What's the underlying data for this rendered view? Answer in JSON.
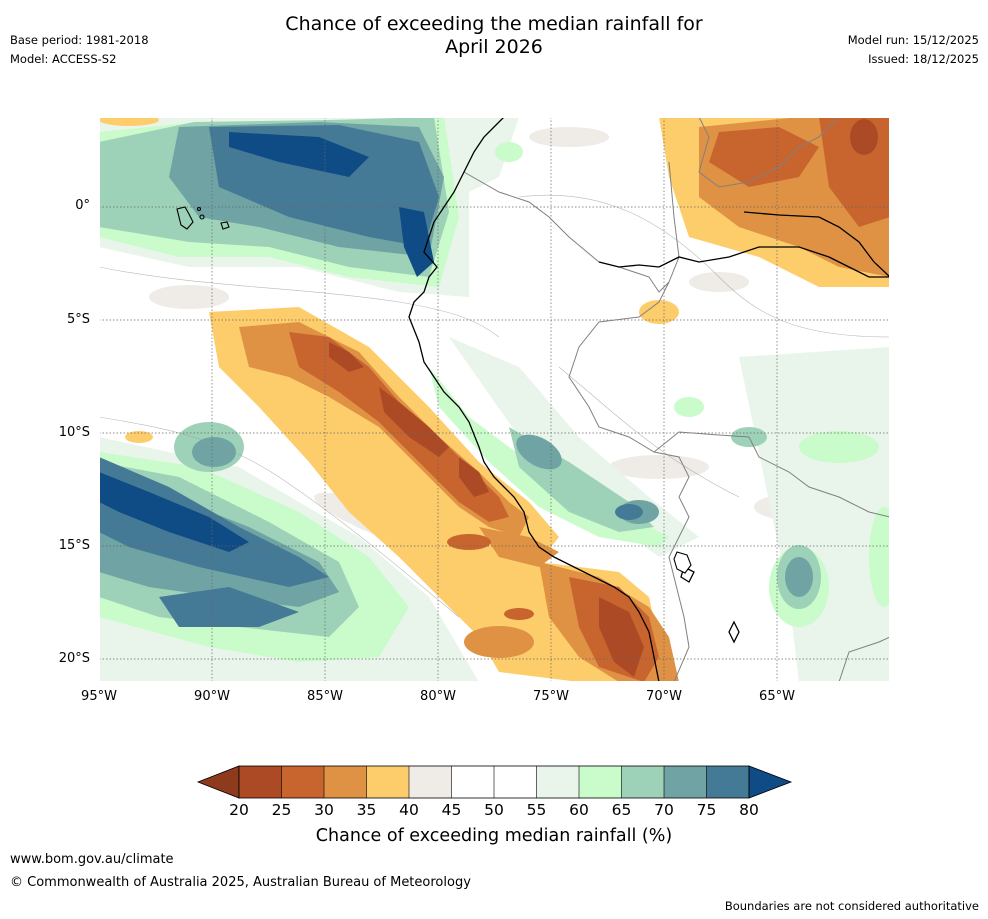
{
  "header": {
    "title_line1": "Chance of exceeding the median rainfall for",
    "title_line2": "April 2026",
    "base_period": "Base period: 1981-2018",
    "model": "Model: ACCESS-S2",
    "model_run": "Model run: 15/12/2025",
    "issued": "Issued: 18/12/2025"
  },
  "map": {
    "lat_labels": [
      "0°",
      "5°S",
      "10°S",
      "15°S",
      "20°S"
    ],
    "lon_labels": [
      "95°W",
      "90°W",
      "85°W",
      "80°W",
      "75°W",
      "70°W",
      "65°W"
    ]
  },
  "colorbar": {
    "ticks": [
      "20",
      "25",
      "30",
      "35",
      "40",
      "45",
      "50",
      "55",
      "60",
      "65",
      "70",
      "75",
      "80"
    ],
    "title": "Chance of exceeding median rainfall (%)",
    "colors": {
      "below20": "#8e3a1c",
      "c20_25": "#ad4a26",
      "c25_30": "#c8652f",
      "c30_35": "#df9244",
      "c35_40": "#fdcd6b",
      "c40_45": "#efebe6",
      "c45_55": "#ffffff",
      "c55_60": "#e9f5ea",
      "c60_65": "#c9fbcb",
      "c65_70": "#9dd2b8",
      "c70_75": "#70a3a3",
      "c75_80": "#457a96",
      "above80": "#0f4c86"
    }
  },
  "footer": {
    "url": "www.bom.gov.au/climate",
    "copyright": "© Commonwealth of Australia 2025, Australian Bureau of Meteorology",
    "disclaimer": "Boundaries are not considered authoritative"
  }
}
